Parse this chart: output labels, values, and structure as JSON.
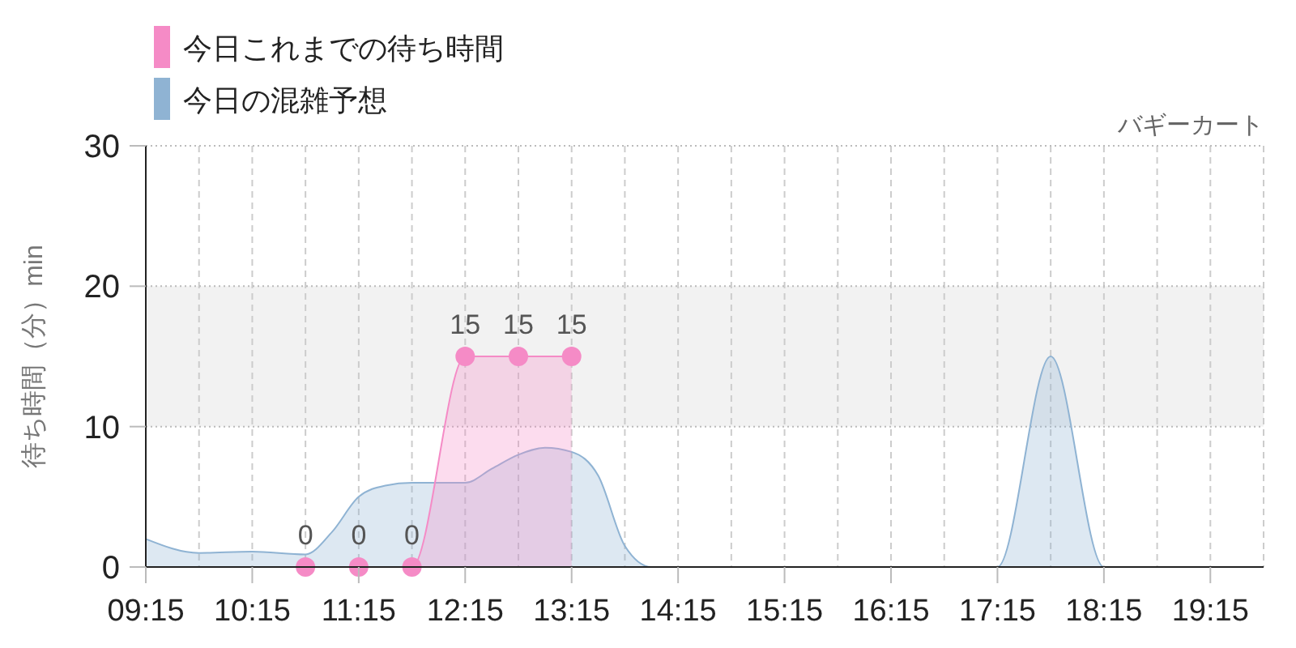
{
  "chart_data": {
    "type": "area",
    "title": "バギーカート",
    "ylabel": "待ち時間（分）min",
    "legend": "top left",
    "grid": true,
    "xlim": [
      9.25,
      19.75
    ],
    "xticks": [
      {
        "value": 9.25,
        "label": "09:15"
      },
      {
        "value": 9.75,
        "label": null
      },
      {
        "value": 10.25,
        "label": "10:15"
      },
      {
        "value": 10.75,
        "label": null
      },
      {
        "value": 11.25,
        "label": "11:15"
      },
      {
        "value": 11.75,
        "label": null
      },
      {
        "value": 12.25,
        "label": "12:15"
      },
      {
        "value": 12.75,
        "label": null
      },
      {
        "value": 13.25,
        "label": "13:15"
      },
      {
        "value": 13.75,
        "label": null
      },
      {
        "value": 14.25,
        "label": "14:15"
      },
      {
        "value": 14.75,
        "label": null
      },
      {
        "value": 15.25,
        "label": "15:15"
      },
      {
        "value": 15.75,
        "label": null
      },
      {
        "value": 16.25,
        "label": "16:15"
      },
      {
        "value": 16.75,
        "label": null
      },
      {
        "value": 17.25,
        "label": "17:15"
      },
      {
        "value": 17.75,
        "label": null
      },
      {
        "value": 18.25,
        "label": "18:15"
      },
      {
        "value": 18.75,
        "label": null
      },
      {
        "value": 19.25,
        "label": "19:15"
      },
      {
        "value": 19.75,
        "label": null
      }
    ],
    "ylim": [
      0,
      30
    ],
    "yticks": [
      0,
      10,
      20,
      30
    ],
    "bands": [
      {
        "axis": "y",
        "from": 10,
        "to": 20,
        "color": "#f2f2f2"
      }
    ],
    "series": [
      {
        "name": "今日の混雑予想",
        "color": "#8fb3d3",
        "marker": "none",
        "x": [
          9.25,
          9.75,
          10.25,
          10.75,
          11.0,
          11.25,
          11.5,
          11.75,
          12.0,
          12.25,
          12.5,
          12.75,
          13.0,
          13.25,
          13.5,
          13.75,
          14.0,
          14.5,
          15.0,
          15.5,
          16.0,
          16.5,
          17.0,
          17.25,
          17.75,
          18.25,
          18.75,
          19.25,
          19.75
        ],
        "values": [
          2,
          1.0,
          1.1,
          0.9,
          2.5,
          5.0,
          5.8,
          6.0,
          6.0,
          6.0,
          7.0,
          8.0,
          8.5,
          8.2,
          6.5,
          1.5,
          0,
          0,
          0,
          0,
          0,
          0,
          0,
          0,
          15,
          0,
          0,
          0,
          0
        ]
      },
      {
        "name": "今日これまでの待ち時間",
        "color": "#f58bc6",
        "marker": "circle",
        "x": [
          10.75,
          11.25,
          11.75,
          12.25,
          12.75,
          13.25
        ],
        "values": [
          0,
          0,
          0,
          15,
          15,
          15
        ],
        "value_labels": [
          "0",
          "0",
          "0",
          "15",
          "15",
          "15"
        ]
      }
    ]
  }
}
